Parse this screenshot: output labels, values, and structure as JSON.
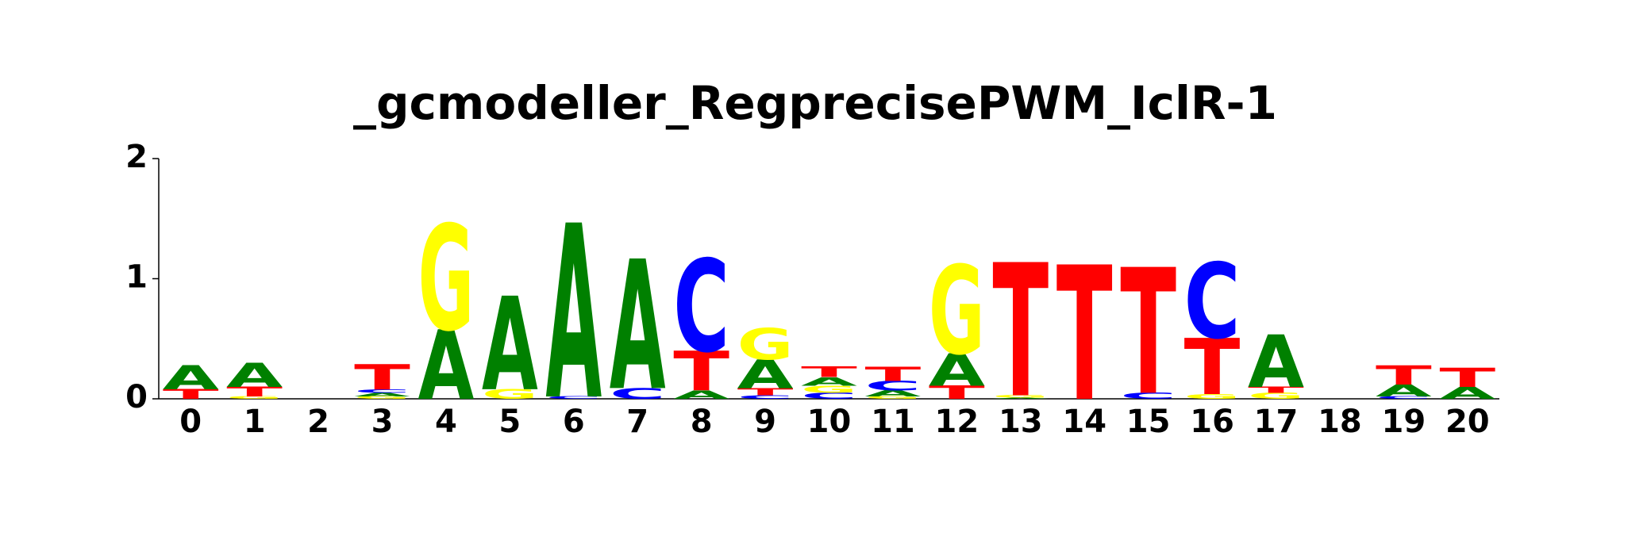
{
  "chart_data": {
    "type": "logo",
    "title": "_gcmodeller_RegprecisePWM_IclR-1",
    "categories": [
      "0",
      "1",
      "2",
      "3",
      "4",
      "5",
      "6",
      "7",
      "8",
      "9",
      "10",
      "11",
      "12",
      "13",
      "14",
      "15",
      "16",
      "17",
      "18",
      "19",
      "20"
    ],
    "series": [
      {
        "name": "A",
        "color": "#008000",
        "values": [
          0.2,
          0.2,
          0,
          0.03,
          0.58,
          0.78,
          1.45,
          1.08,
          0.07,
          0.24,
          0.07,
          0.05,
          0.27,
          0.01,
          0,
          0,
          0,
          0.44,
          0,
          0.1,
          0.1
        ]
      },
      {
        "name": "C",
        "color": "#0000ff",
        "values": [
          0,
          0,
          0,
          0.03,
          0,
          0,
          0.02,
          0.09,
          0.77,
          0.03,
          0.05,
          0.08,
          0,
          0,
          0,
          0.05,
          0.63,
          0,
          0,
          0.02,
          0
        ]
      },
      {
        "name": "G",
        "color": "#ffff00",
        "values": [
          0,
          0.02,
          0,
          0.02,
          0.88,
          0.08,
          0,
          0,
          0,
          0.26,
          0.06,
          0.02,
          0.74,
          0.02,
          0,
          0,
          0.04,
          0.05,
          0,
          0,
          0
        ]
      },
      {
        "name": "T",
        "color": "#ff0000",
        "values": [
          0.08,
          0.08,
          0,
          0.21,
          0,
          0,
          0,
          0,
          0.33,
          0.06,
          0.09,
          0.12,
          0.11,
          1.11,
          1.12,
          1.05,
          0.47,
          0.05,
          0,
          0.16,
          0.16
        ]
      }
    ],
    "ylim": [
      0,
      2
    ],
    "yticks": [
      0,
      1,
      2
    ]
  }
}
